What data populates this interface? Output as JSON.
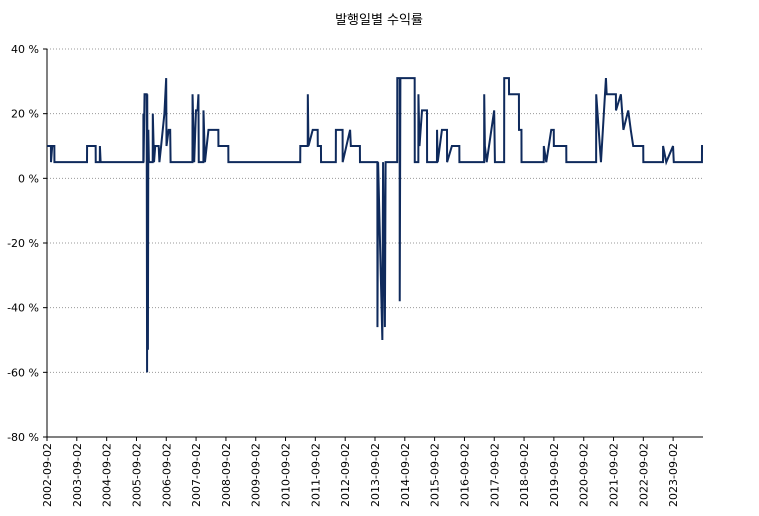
{
  "chart_data": {
    "type": "line",
    "title": "발행일별 수익률",
    "x": [
      "2002-09-02",
      "2002-10-20",
      "2002-10-21",
      "2002-11-05",
      "2002-12-01",
      "2002-12-02",
      "2004-01-05",
      "2004-01-06",
      "2004-04-20",
      "2004-04-21",
      "2004-06-10",
      "2004-06-11",
      "2004-06-20",
      "2005-11-25",
      "2005-11-26",
      "2005-11-28",
      "2005-12-10",
      "2006-01-05",
      "2006-01-10",
      "2006-01-12",
      "2006-01-20",
      "2006-01-25",
      "2006-02-01",
      "2006-03-20",
      "2006-03-21",
      "2006-04-05",
      "2006-04-20",
      "2006-06-01",
      "2006-06-10",
      "2006-07-01",
      "2006-08-10",
      "2006-09-01",
      "2006-09-05",
      "2006-10-01",
      "2006-10-20",
      "2006-10-25",
      "2007-07-20",
      "2007-07-21",
      "2007-08-10",
      "2007-09-01",
      "2007-09-20",
      "2007-10-01",
      "2007-10-05",
      "2007-12-01",
      "2007-12-02",
      "2007-12-20",
      "2008-02-01",
      "2008-06-01",
      "2008-06-02",
      "2008-10-01",
      "2008-10-02",
      "2011-03-01",
      "2011-03-02",
      "2011-06-01",
      "2011-06-02",
      "2011-06-10",
      "2011-08-01",
      "2011-10-01",
      "2011-10-02",
      "2011-11-10",
      "2011-11-11",
      "2012-05-10",
      "2012-05-11",
      "2012-08-01",
      "2012-08-02",
      "2012-11-01",
      "2012-11-10",
      "2013-03-01",
      "2013-03-02",
      "2013-10-01",
      "2013-10-02",
      "2013-10-10",
      "2013-12-01",
      "2013-12-10",
      "2014-01-01",
      "2014-01-10",
      "2014-06-01",
      "2014-06-02",
      "2014-07-01",
      "2014-07-02",
      "2014-07-10",
      "2015-01-01",
      "2015-01-02",
      "2015-02-15",
      "2015-02-16",
      "2015-03-01",
      "2015-04-01",
      "2015-06-01",
      "2015-06-02",
      "2015-10-01",
      "2015-10-02",
      "2015-10-10",
      "2015-12-01",
      "2016-02-01",
      "2016-02-02",
      "2016-04-01",
      "2016-07-01",
      "2016-07-02",
      "2017-05-01",
      "2017-05-02",
      "2017-05-10",
      "2017-06-01",
      "2017-09-01",
      "2017-09-10",
      "2018-01-01",
      "2018-01-02",
      "2018-03-01",
      "2018-03-02",
      "2018-07-01",
      "2018-07-02",
      "2018-08-01",
      "2018-08-02",
      "2019-05-01",
      "2019-05-02",
      "2019-06-01",
      "2019-08-01",
      "2019-09-01",
      "2019-09-02",
      "2020-02-01",
      "2020-02-02",
      "2021-02-01",
      "2021-02-02",
      "2021-04-01",
      "2021-06-01",
      "2021-06-10",
      "2021-10-01",
      "2021-10-02",
      "2021-12-01",
      "2022-01-01",
      "2022-03-01",
      "2022-04-01",
      "2022-05-01",
      "2022-09-01",
      "2022-09-02",
      "2023-05-01",
      "2023-05-02",
      "2023-06-10",
      "2023-09-01",
      "2023-09-10",
      "2024-08-20",
      "2024-08-21",
      "2024-09-02"
    ],
    "series": [
      {
        "name": "수익률",
        "color": "#0f2a5c",
        "values": [
          10,
          10,
          5,
          10,
          10,
          5,
          5,
          10,
          10,
          5,
          5,
          10,
          5,
          5,
          20,
          5,
          26,
          26,
          -60,
          26,
          -53,
          15,
          5,
          5,
          20,
          5,
          10,
          10,
          5,
          10,
          20,
          31,
          10,
          15,
          15,
          5,
          5,
          26,
          5,
          21,
          21,
          26,
          5,
          5,
          21,
          5,
          15,
          15,
          10,
          10,
          5,
          5,
          10,
          10,
          26,
          10,
          15,
          15,
          10,
          10,
          5,
          5,
          15,
          15,
          5,
          15,
          10,
          10,
          5,
          5,
          -46,
          5,
          -50,
          5,
          -46,
          5,
          5,
          31,
          31,
          -38,
          31,
          31,
          5,
          5,
          26,
          10,
          21,
          21,
          5,
          5,
          15,
          5,
          15,
          15,
          5,
          10,
          10,
          5,
          5,
          26,
          10,
          5,
          21,
          5,
          5,
          31,
          31,
          26,
          26,
          15,
          15,
          5,
          5,
          10,
          5,
          15,
          15,
          10,
          10,
          5,
          5,
          26,
          5,
          31,
          26,
          26,
          21,
          26,
          15,
          21,
          15,
          10,
          10,
          5,
          5,
          10,
          5,
          10,
          5,
          5,
          10,
          10
        ]
      }
    ],
    "xlim": [
      "2002-09-02",
      "2024-09-02"
    ],
    "xticks": [
      "2002-09-02",
      "2003-09-02",
      "2004-09-02",
      "2005-09-02",
      "2006-09-02",
      "2007-09-02",
      "2008-09-02",
      "2009-09-02",
      "2010-09-02",
      "2011-09-02",
      "2012-09-02",
      "2013-09-02",
      "2014-09-02",
      "2015-09-02",
      "2016-09-02",
      "2017-09-02",
      "2018-09-02",
      "2019-09-02",
      "2020-09-02",
      "2021-09-02",
      "2022-09-02",
      "2023-09-02"
    ],
    "ylim": [
      -80,
      40
    ],
    "yticks": [
      {
        "value": -80,
        "label": "-80 %"
      },
      {
        "value": -60,
        "label": "-60 %"
      },
      {
        "value": -40,
        "label": "-40 %"
      },
      {
        "value": -20,
        "label": "-20 %"
      },
      {
        "value": 0,
        "label": "0 %"
      },
      {
        "value": 20,
        "label": "20 %"
      },
      {
        "value": 40,
        "label": "40 %"
      }
    ],
    "grid": true
  }
}
